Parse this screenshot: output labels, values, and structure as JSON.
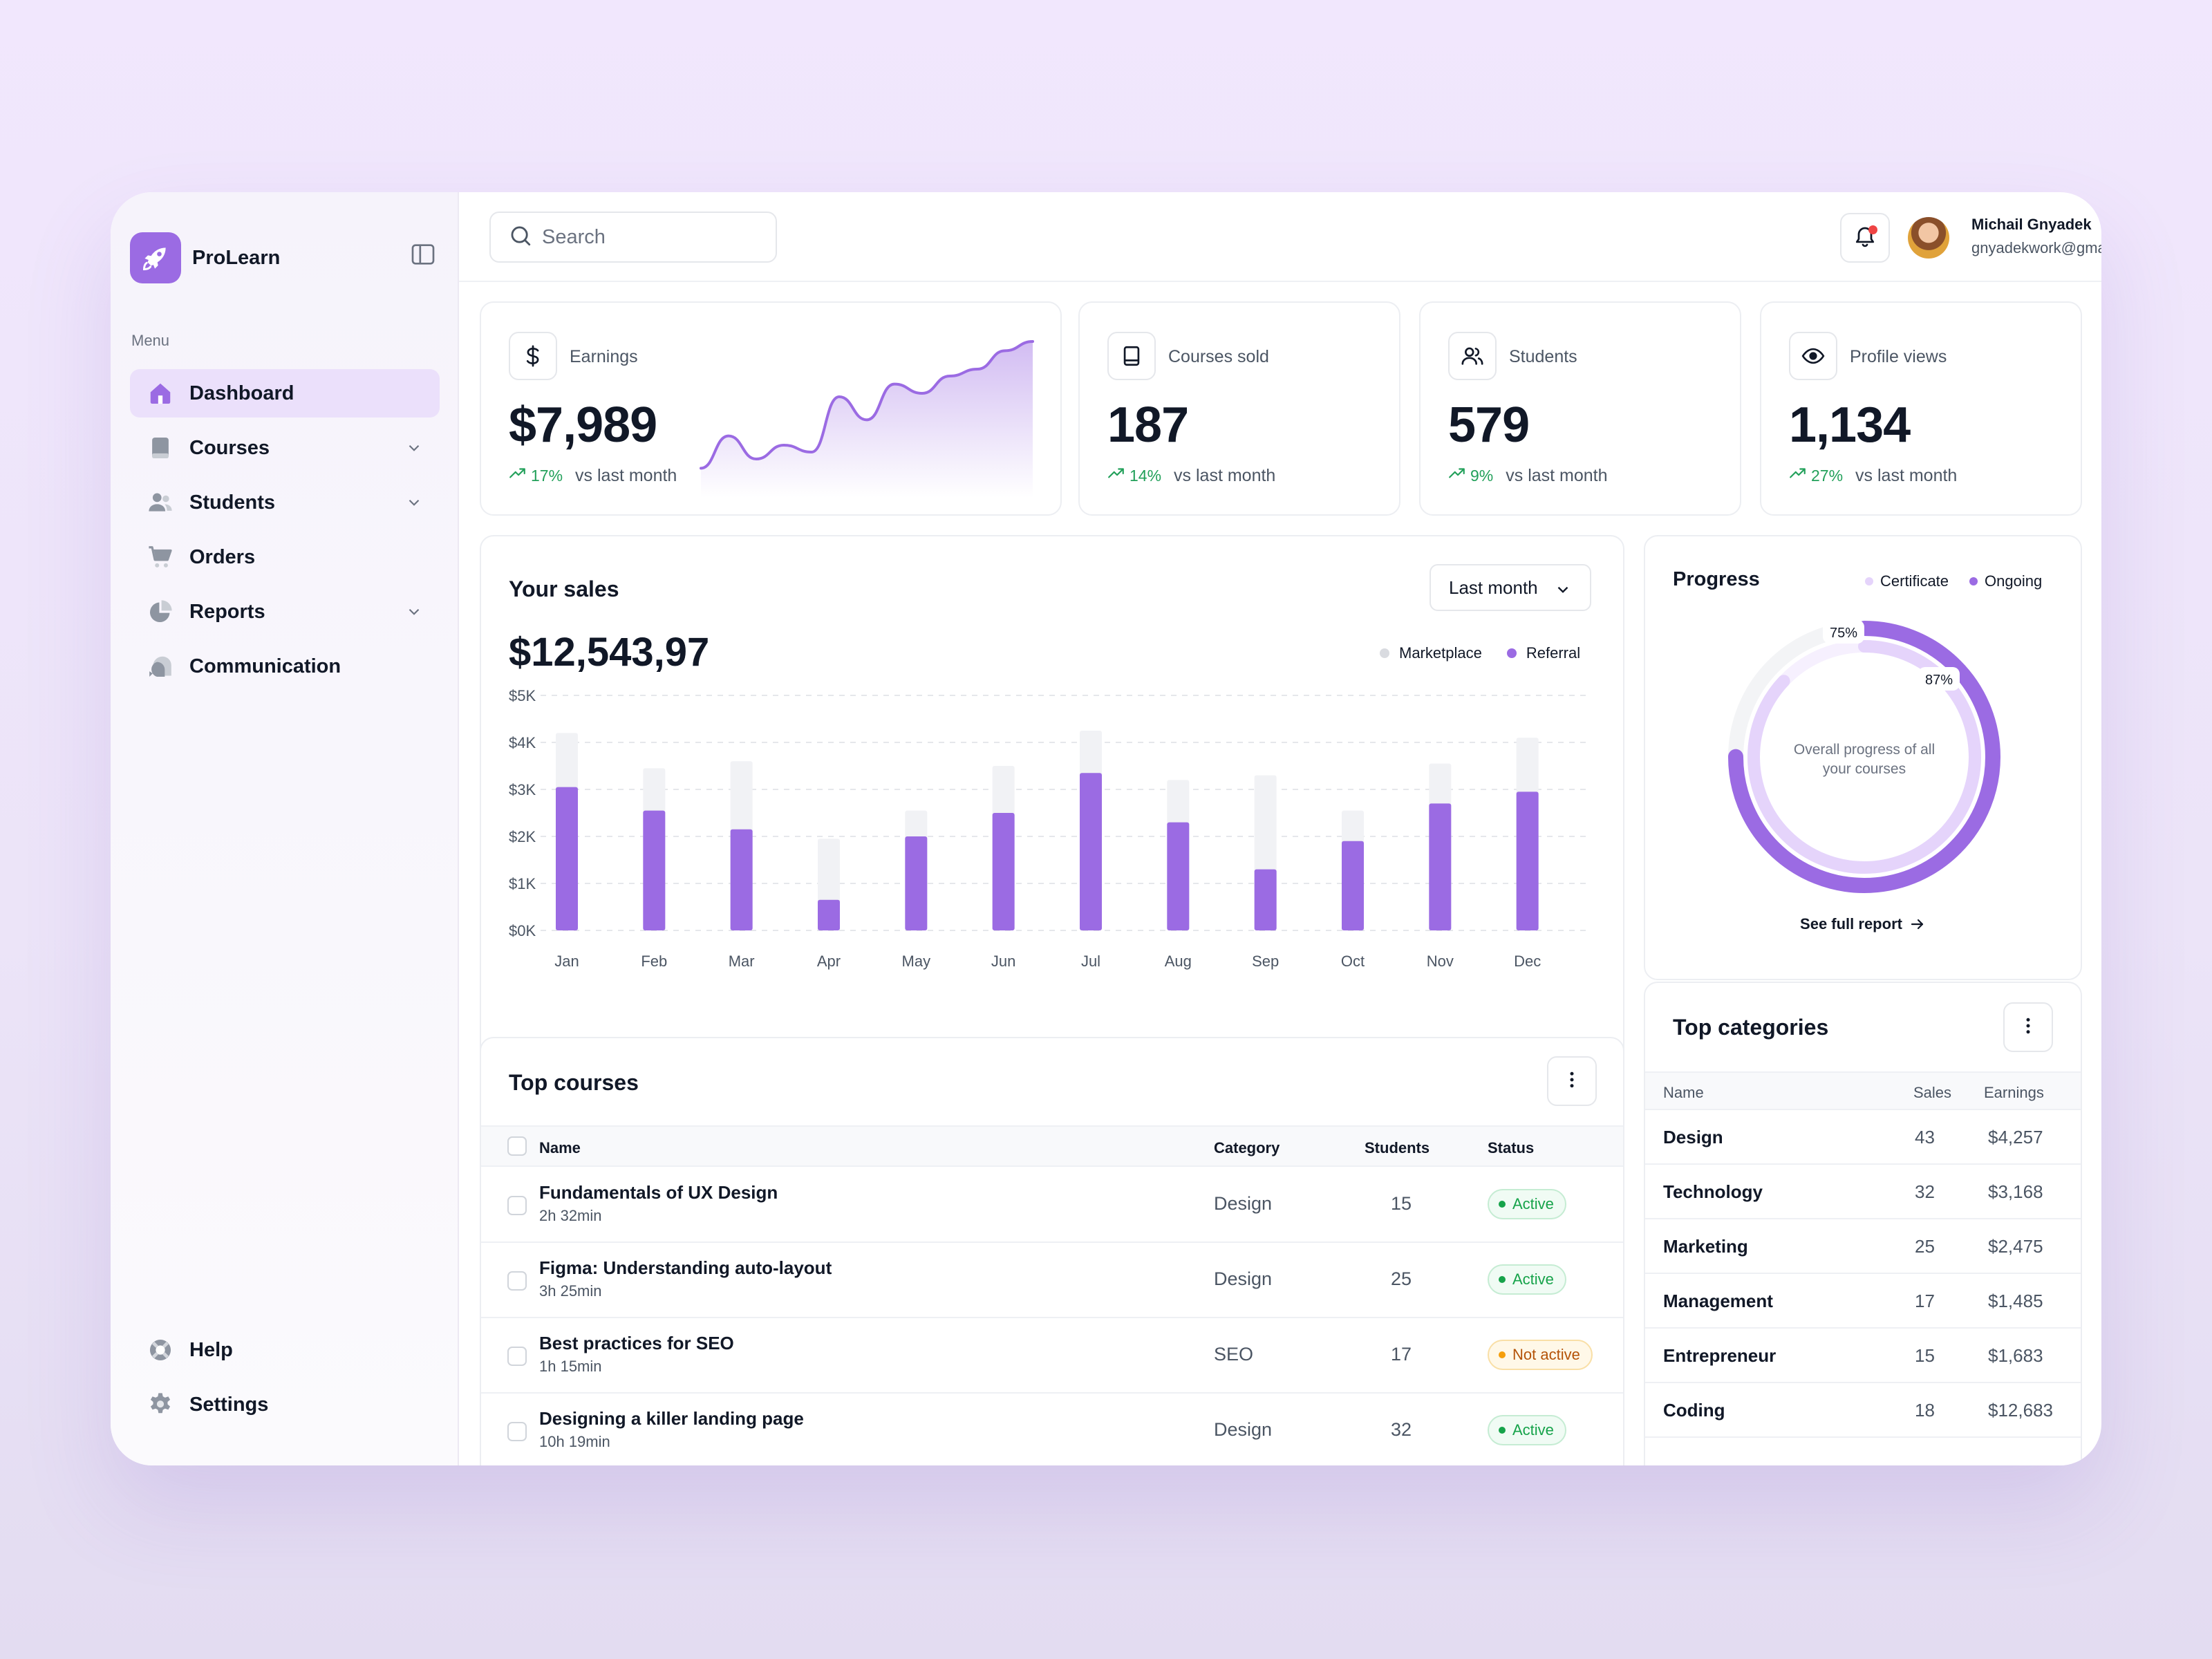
{
  "brand": {
    "name": "ProLearn"
  },
  "sidebar": {
    "menu_label": "Menu",
    "items": [
      {
        "label": "Dashboard",
        "icon": "home-icon",
        "active": true,
        "has_children": false
      },
      {
        "label": "Courses",
        "icon": "book-icon",
        "active": false,
        "has_children": true
      },
      {
        "label": "Students",
        "icon": "users-icon",
        "active": false,
        "has_children": true
      },
      {
        "label": "Orders",
        "icon": "cart-icon",
        "active": false,
        "has_children": false
      },
      {
        "label": "Reports",
        "icon": "pie-chart-icon",
        "active": false,
        "has_children": true
      },
      {
        "label": "Communication",
        "icon": "chat-icon",
        "active": false,
        "has_children": false
      }
    ],
    "bottom_items": [
      {
        "label": "Help",
        "icon": "lifebuoy-icon"
      },
      {
        "label": "Settings",
        "icon": "gear-icon"
      }
    ]
  },
  "topbar": {
    "search_placeholder": "Search",
    "user": {
      "name": "Michail Gnyadek",
      "email": "gnyadekwork@gmail.com"
    },
    "notification_unread": true
  },
  "stats": [
    {
      "label": "Earnings",
      "icon": "dollar-icon",
      "value": "$7,989",
      "trend": "17%",
      "trend_text": "vs last month"
    },
    {
      "label": "Courses sold",
      "icon": "book-outline-icon",
      "value": "187",
      "trend": "14%",
      "trend_text": "vs last month"
    },
    {
      "label": "Students",
      "icon": "users-outline-icon",
      "value": "579",
      "trend": "9%",
      "trend_text": "vs last month"
    },
    {
      "label": "Profile views",
      "icon": "eye-icon",
      "value": "1,134",
      "trend": "27%",
      "trend_text": "vs last month"
    }
  ],
  "sales": {
    "title": "Your sales",
    "total": "$12,543,97",
    "period": "Last month",
    "legend": [
      {
        "name": "Marketplace",
        "color": "#d9dbe0"
      },
      {
        "name": "Referral",
        "color": "#9b6be3"
      }
    ]
  },
  "chart_data": [
    {
      "type": "bar",
      "title": "Your sales",
      "categories": [
        "Jan",
        "Feb",
        "Mar",
        "Apr",
        "May",
        "Jun",
        "Jul",
        "Aug",
        "Sep",
        "Oct",
        "Nov",
        "Dec"
      ],
      "y_ticks": [
        "$0K",
        "$1K",
        "$2K",
        "$3K",
        "$4K",
        "$5K"
      ],
      "ylim": [
        0,
        5000
      ],
      "series": [
        {
          "name": "Marketplace",
          "color": "#f1f2f5",
          "values": [
            4200,
            3450,
            3600,
            1950,
            2550,
            3500,
            4250,
            3200,
            3300,
            2550,
            3550,
            4100
          ]
        },
        {
          "name": "Referral",
          "color": "#9b6be3",
          "values": [
            3050,
            2550,
            2150,
            650,
            2000,
            2500,
            3350,
            2300,
            1300,
            1900,
            2700,
            2950
          ]
        }
      ],
      "grid": true
    },
    {
      "type": "pie",
      "title": "Progress",
      "series": [
        {
          "name": "Certificate",
          "color": "#e5d4fb",
          "values": [
            87
          ]
        },
        {
          "name": "Ongoing",
          "color": "#9b6be3",
          "values": [
            75
          ]
        }
      ]
    },
    {
      "type": "area",
      "title": "Earnings",
      "x": [
        1,
        2,
        3,
        4,
        5,
        6,
        7,
        8,
        9,
        10,
        11,
        12,
        13
      ],
      "values": [
        10,
        38,
        18,
        30,
        24,
        72,
        52,
        83,
        75,
        90,
        96,
        112,
        120
      ]
    }
  ],
  "progress": {
    "title": "Progress",
    "legend": [
      {
        "name": "Certificate",
        "color": "#e5d4fb"
      },
      {
        "name": "Ongoing",
        "color": "#9b6be3"
      }
    ],
    "ongoing_pct": "75%",
    "certificate_pct": "87%",
    "center_text_1": "Overall progress of all",
    "center_text_2": "your courses",
    "link": "See full report"
  },
  "top_courses": {
    "title": "Top courses",
    "columns": {
      "name": "Name",
      "category": "Category",
      "students": "Students",
      "status": "Status"
    },
    "rows": [
      {
        "name": "Fundamentals of UX Design",
        "duration": "2h 32min",
        "category": "Design",
        "students": "15",
        "status": "Active",
        "status_kind": "active"
      },
      {
        "name": "Figma: Understanding auto-layout",
        "duration": "3h 25min",
        "category": "Design",
        "students": "25",
        "status": "Active",
        "status_kind": "active"
      },
      {
        "name": "Best practices for SEO",
        "duration": "1h 15min",
        "category": "SEO",
        "students": "17",
        "status": "Not active",
        "status_kind": "inactive"
      },
      {
        "name": "Designing a killer landing page",
        "duration": "10h 19min",
        "category": "Design",
        "students": "32",
        "status": "Active",
        "status_kind": "active"
      }
    ]
  },
  "top_categories": {
    "title": "Top categories",
    "columns": {
      "name": "Name",
      "sales": "Sales",
      "earnings": "Earnings"
    },
    "rows": [
      {
        "name": "Design",
        "sales": "43",
        "earnings": "$4,257"
      },
      {
        "name": "Technology",
        "sales": "32",
        "earnings": "$3,168"
      },
      {
        "name": "Marketing",
        "sales": "25",
        "earnings": "$2,475"
      },
      {
        "name": "Management",
        "sales": "17",
        "earnings": "$1,485"
      },
      {
        "name": "Entrepreneur",
        "sales": "15",
        "earnings": "$1,683"
      },
      {
        "name": "Coding",
        "sales": "18",
        "earnings": "$12,683"
      }
    ]
  },
  "colors": {
    "accent": "#9b6be3",
    "accent_light": "#ebe0fb",
    "positive": "#22a05a"
  }
}
